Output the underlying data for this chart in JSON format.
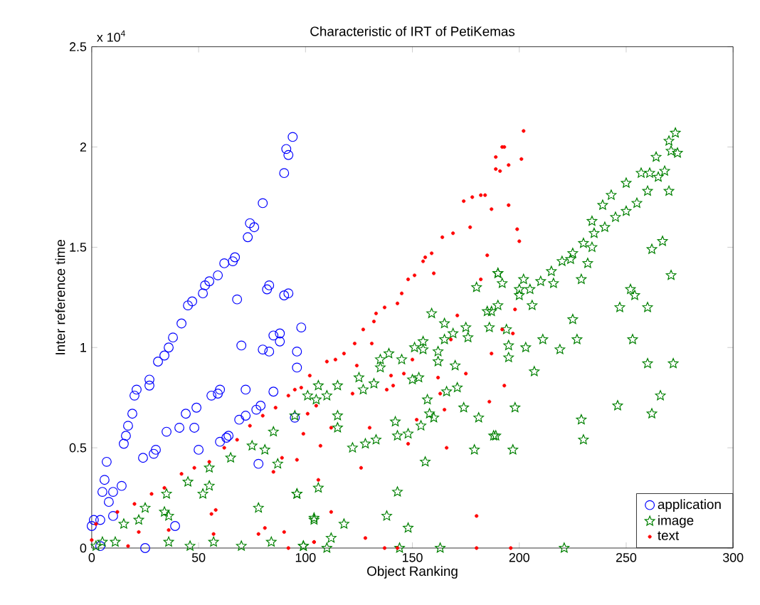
{
  "chart_data": {
    "type": "scatter",
    "title": "Characteristic of IRT of PetiKemas",
    "xlabel": "Object Ranking",
    "ylabel": "Inter reference time",
    "annotations": [
      "x 10$^{4}$"
    ],
    "xlim": [
      0,
      300
    ],
    "xticks": [
      0,
      50,
      100,
      150,
      200,
      250,
      300
    ],
    "ylim": [
      0,
      2.5
    ],
    "yticks": [
      0,
      0.5,
      1,
      1.5,
      2,
      2.5
    ],
    "grid": false,
    "legend": "bottom right",
    "series": [
      {
        "name": "application",
        "color": "#0000ff",
        "marker": "circle",
        "x": [
          94,
          91,
          92,
          90,
          80,
          74,
          76,
          73,
          67,
          66,
          62,
          59,
          55,
          53,
          52,
          47,
          45,
          42,
          38,
          36,
          34,
          31,
          27,
          27,
          21,
          20,
          19,
          17,
          16,
          15,
          14,
          10,
          7,
          6,
          5,
          8,
          4,
          1,
          0,
          83,
          82,
          90,
          92,
          68,
          98,
          88,
          85,
          88,
          70,
          80,
          83,
          96,
          96,
          72,
          60,
          59,
          56,
          79,
          77,
          72,
          69,
          95,
          49,
          44,
          41,
          48,
          35,
          64,
          63,
          60,
          85,
          50,
          30,
          29,
          24,
          78,
          39,
          25,
          4,
          10
        ],
        "values": [
          2.05,
          1.99,
          1.96,
          1.87,
          1.72,
          1.62,
          1.6,
          1.55,
          1.45,
          1.43,
          1.42,
          1.36,
          1.33,
          1.31,
          1.27,
          1.23,
          1.21,
          1.12,
          1.05,
          1.0,
          0.96,
          0.93,
          0.84,
          0.81,
          0.79,
          0.76,
          0.67,
          0.61,
          0.56,
          0.52,
          0.31,
          0.28,
          0.43,
          0.34,
          0.28,
          0.23,
          0.14,
          0.14,
          0.11,
          1.31,
          1.29,
          1.26,
          1.27,
          1.24,
          1.1,
          1.07,
          1.06,
          1.03,
          1.01,
          0.99,
          0.98,
          0.98,
          0.9,
          0.79,
          0.79,
          0.77,
          0.76,
          0.71,
          0.69,
          0.66,
          0.64,
          0.65,
          0.7,
          0.67,
          0.6,
          0.6,
          0.58,
          0.56,
          0.55,
          0.53,
          0.78,
          0.49,
          0.49,
          0.47,
          0.45,
          0.42,
          0.11,
          0.0,
          0.01,
          0.16
        ]
      },
      {
        "name": "image",
        "color": "#008000",
        "marker": "star",
        "x": [
          5,
          15,
          25,
          35,
          45,
          55,
          65,
          75,
          85,
          95,
          105,
          115,
          125,
          135,
          145,
          155,
          165,
          175,
          185,
          190,
          200,
          205,
          210,
          215,
          220,
          225,
          230,
          235,
          240,
          245,
          250,
          255,
          260,
          265,
          268,
          270,
          273,
          271,
          274,
          243,
          239,
          234,
          250,
          257,
          261,
          264,
          270,
          267,
          262,
          271,
          252,
          254,
          247,
          260,
          253,
          260,
          272,
          266,
          262,
          246,
          230,
          229,
          219,
          227,
          225,
          211,
          203,
          207,
          206,
          195,
          194,
          198,
          197,
          189,
          232,
          229,
          216,
          224,
          234,
          200,
          202,
          192,
          190,
          187,
          221,
          190,
          180,
          176,
          186,
          195,
          159,
          165,
          169,
          151,
          155,
          162,
          170,
          162,
          150,
          153,
          139,
          135,
          132,
          127,
          157,
          166,
          171,
          174,
          181,
          188,
          179,
          142,
          143,
          148,
          154,
          160,
          158,
          133,
          128,
          122,
          115,
          115,
          110,
          101,
          106,
          156,
          143,
          138,
          148,
          118,
          104,
          106,
          96,
          112,
          110,
          99,
          144,
          163,
          78,
          104,
          96,
          55,
          52,
          87,
          81,
          36,
          36,
          46,
          57,
          70,
          84,
          99,
          11,
          2,
          22,
          34
        ],
        "values": [
          0.03,
          0.12,
          0.2,
          0.27,
          0.33,
          0.4,
          0.45,
          0.51,
          0.58,
          0.66,
          0.74,
          0.81,
          0.85,
          0.9,
          0.94,
          0.99,
          1.04,
          1.1,
          1.18,
          1.21,
          1.26,
          1.29,
          1.33,
          1.38,
          1.43,
          1.47,
          1.52,
          1.57,
          1.6,
          1.65,
          1.68,
          1.72,
          1.78,
          1.85,
          1.88,
          2.03,
          2.07,
          1.98,
          1.97,
          1.76,
          1.71,
          1.63,
          1.82,
          1.87,
          1.87,
          1.95,
          1.78,
          1.53,
          1.49,
          1.36,
          1.29,
          1.26,
          1.2,
          1.2,
          1.04,
          0.92,
          0.92,
          0.76,
          0.67,
          0.71,
          0.54,
          0.64,
          0.99,
          1.04,
          1.14,
          1.04,
          1.0,
          0.88,
          1.21,
          1.01,
          1.09,
          0.7,
          0.49,
          0.56,
          1.42,
          1.34,
          1.32,
          1.44,
          1.5,
          1.29,
          1.34,
          1.32,
          1.37,
          1.18,
          0,
          1.37,
          1.3,
          1.05,
          1.1,
          0.95,
          1.17,
          1.12,
          1.07,
          1.0,
          1.03,
          0.98,
          0.91,
          0.93,
          0.84,
          0.85,
          0.97,
          0.94,
          0.82,
          0.79,
          0.74,
          0.78,
          0.8,
          0.7,
          0.65,
          0.56,
          0.49,
          0.63,
          0.56,
          0.57,
          0.61,
          0.65,
          0.67,
          0.54,
          0.52,
          0.5,
          0.66,
          0.6,
          0.76,
          0.76,
          0.81,
          0.43,
          0.28,
          0.16,
          0.1,
          0.12,
          0.14,
          0.3,
          0.27,
          0.05,
          0,
          0.01,
          0,
          0,
          0.2,
          0.15,
          0.27,
          0.31,
          0.27,
          0.42,
          0.49,
          0.16,
          0.03,
          0.01,
          0.03,
          0.01,
          0.03,
          0.01,
          0.03,
          0.01,
          0.14,
          0.18
        ]
      },
      {
        "name": "text",
        "color": "#ff0000",
        "marker": "point",
        "x": [
          193,
          189,
          189,
          191,
          174,
          178,
          182,
          184,
          169,
          164,
          159,
          156,
          155,
          151,
          148,
          145,
          143,
          137,
          133,
          132,
          127,
          123,
          118,
          114,
          110,
          102,
          95,
          195,
          187,
          177,
          185,
          182,
          160,
          171,
          187,
          168,
          150,
          146,
          140,
          131,
          124,
          175,
          162,
          163,
          165,
          186,
          193,
          148,
          152,
          166,
          141,
          138,
          122,
          112,
          130,
          126,
          107,
          99,
          106,
          112,
          128,
          104,
          137,
          143,
          180,
          180,
          196,
          101,
          105,
          202,
          192,
          201,
          195,
          199,
          200,
          198,
          192,
          197,
          2,
          12,
          20,
          28,
          34,
          42,
          48,
          55,
          62,
          68,
          74,
          80,
          86,
          92,
          98,
          56,
          58,
          36,
          57,
          17,
          78,
          90,
          81,
          92,
          104,
          96,
          85,
          89,
          22,
          0
        ],
        "values": [
          2.0,
          1.95,
          1.89,
          1.88,
          1.73,
          1.75,
          1.76,
          1.76,
          1.57,
          1.55,
          1.47,
          1.45,
          1.43,
          1.36,
          1.34,
          1.27,
          1.22,
          1.2,
          1.17,
          1.13,
          1.09,
          1.02,
          0.97,
          0.94,
          0.93,
          0.86,
          0.79,
          1.71,
          1.69,
          1.6,
          1.46,
          1.34,
          1.37,
          1.16,
          0.97,
          1.04,
          0.94,
          0.87,
          0.86,
          1.02,
          0.91,
          0.87,
          0.85,
          0.77,
          0.69,
          0.73,
          0.81,
          0.52,
          0.64,
          0.5,
          0.81,
          0.79,
          0.77,
          0.6,
          0.6,
          0.4,
          0.51,
          0.57,
          0.34,
          0.18,
          0.05,
          0.03,
          0,
          0,
          0.16,
          0,
          0,
          0.67,
          0.71,
          2.08,
          2.0,
          1.94,
          1.91,
          1.59,
          1.53,
          1.19,
          1.09,
          1.07,
          0.12,
          0.18,
          0.22,
          0.27,
          0.3,
          0.37,
          0.4,
          0.43,
          0.5,
          0.54,
          0.61,
          0.66,
          0.7,
          0.76,
          0.8,
          0.17,
          0.19,
          0.09,
          0.07,
          0.01,
          0.07,
          0.08,
          0.1,
          0,
          0.03,
          0.44,
          0.38,
          0.45,
          0.08,
          0.04
        ]
      }
    ]
  }
}
